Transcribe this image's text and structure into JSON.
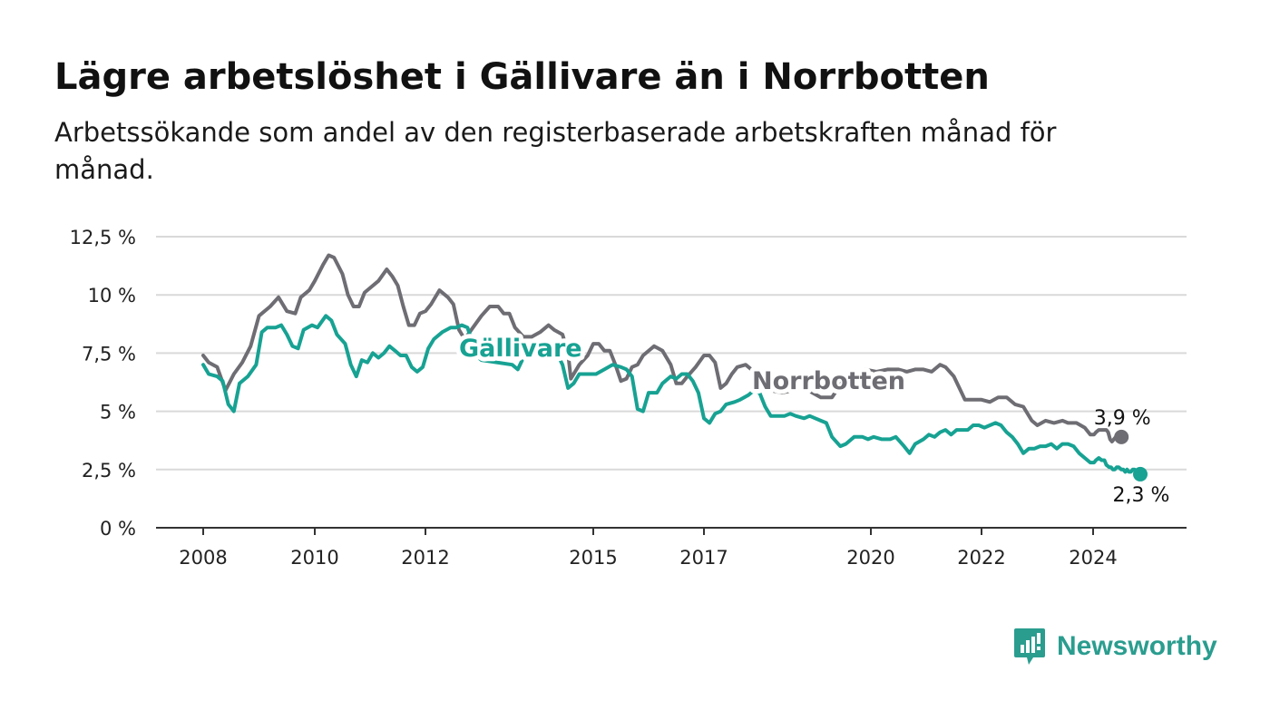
{
  "title": "Lägre arbetslöshet i Gällivare än i Norrbotten",
  "subtitle": "Arbetssökande som andel av den registerbaserade arbetskraften månad för månad.",
  "brand": {
    "name": "Newsworthy",
    "color": "#2a9d8f",
    "icon": "bar-chart-speech-bubble-icon"
  },
  "chart_data": {
    "type": "line",
    "title": "Lägre arbetslöshet i Gällivare än i Norrbotten",
    "subtitle": "Arbetssökande som andel av den registerbaserade arbetskraften månad för månad.",
    "xlabel": "",
    "ylabel": "",
    "ylim": [
      0,
      12.5
    ],
    "xlim": [
      2007.2,
      2025.8
    ],
    "y_ticks": [
      0,
      2.5,
      5,
      7.5,
      10,
      12.5
    ],
    "y_tick_labels": [
      "0 %",
      "2,5 %",
      "5 %",
      "7,5 %",
      "10 %",
      "12,5 %"
    ],
    "x_ticks": [
      2008,
      2010,
      2012,
      2015,
      2017,
      2020,
      2022,
      2024
    ],
    "x_tick_labels": [
      "2008",
      "2010",
      "2012",
      "2015",
      "2017",
      "2020",
      "2022",
      "2024"
    ],
    "grid": true,
    "legend": "inline labels",
    "series": [
      {
        "name": "Norrbotten",
        "color": "#6e6d73",
        "end_label": "3,9 %",
        "points": [
          [
            2008.0,
            7.4
          ],
          [
            2008.1,
            7.1
          ],
          [
            2008.25,
            6.9
          ],
          [
            2008.4,
            5.9
          ],
          [
            2008.55,
            6.6
          ],
          [
            2008.7,
            7.1
          ],
          [
            2008.85,
            7.8
          ],
          [
            2009.0,
            9.1
          ],
          [
            2009.2,
            9.5
          ],
          [
            2009.35,
            9.9
          ],
          [
            2009.5,
            9.3
          ],
          [
            2009.65,
            9.2
          ],
          [
            2009.75,
            9.9
          ],
          [
            2009.9,
            10.2
          ],
          [
            2010.0,
            10.6
          ],
          [
            2010.15,
            11.3
          ],
          [
            2010.25,
            11.7
          ],
          [
            2010.35,
            11.6
          ],
          [
            2010.5,
            10.9
          ],
          [
            2010.6,
            10.0
          ],
          [
            2010.7,
            9.5
          ],
          [
            2010.8,
            9.5
          ],
          [
            2010.9,
            10.1
          ],
          [
            2011.0,
            10.3
          ],
          [
            2011.15,
            10.6
          ],
          [
            2011.3,
            11.1
          ],
          [
            2011.4,
            10.8
          ],
          [
            2011.5,
            10.4
          ],
          [
            2011.6,
            9.5
          ],
          [
            2011.7,
            8.7
          ],
          [
            2011.8,
            8.7
          ],
          [
            2011.9,
            9.2
          ],
          [
            2012.0,
            9.3
          ],
          [
            2012.1,
            9.6
          ],
          [
            2012.25,
            10.2
          ],
          [
            2012.4,
            9.9
          ],
          [
            2012.5,
            9.6
          ],
          [
            2012.6,
            8.5
          ],
          [
            2012.7,
            8.1
          ],
          [
            2012.85,
            8.6
          ],
          [
            2013.0,
            9.1
          ],
          [
            2013.15,
            9.5
          ],
          [
            2013.3,
            9.5
          ],
          [
            2013.4,
            9.2
          ],
          [
            2013.5,
            9.2
          ],
          [
            2013.6,
            8.6
          ],
          [
            2013.75,
            8.2
          ],
          [
            2013.9,
            8.2
          ],
          [
            2014.05,
            8.4
          ],
          [
            2014.2,
            8.7
          ],
          [
            2014.3,
            8.5
          ],
          [
            2014.45,
            8.3
          ],
          [
            2014.55,
            7.5
          ],
          [
            2014.6,
            6.4
          ],
          [
            2014.75,
            7.0
          ],
          [
            2014.9,
            7.4
          ],
          [
            2015.0,
            7.9
          ],
          [
            2015.1,
            7.9
          ],
          [
            2015.2,
            7.6
          ],
          [
            2015.3,
            7.6
          ],
          [
            2015.4,
            7.0
          ],
          [
            2015.5,
            6.3
          ],
          [
            2015.6,
            6.4
          ],
          [
            2015.7,
            6.9
          ],
          [
            2015.8,
            7.0
          ],
          [
            2015.9,
            7.4
          ],
          [
            2016.1,
            7.8
          ],
          [
            2016.25,
            7.6
          ],
          [
            2016.4,
            7.0
          ],
          [
            2016.5,
            6.2
          ],
          [
            2016.6,
            6.2
          ],
          [
            2016.7,
            6.5
          ],
          [
            2016.85,
            6.9
          ],
          [
            2017.0,
            7.4
          ],
          [
            2017.1,
            7.4
          ],
          [
            2017.2,
            7.1
          ],
          [
            2017.3,
            6.0
          ],
          [
            2017.4,
            6.2
          ],
          [
            2017.5,
            6.6
          ],
          [
            2017.6,
            6.9
          ],
          [
            2017.75,
            7.0
          ],
          [
            2017.9,
            6.7
          ],
          [
            2018.1,
            6.2
          ],
          [
            2018.2,
            5.9
          ],
          [
            2018.4,
            5.8
          ],
          [
            2018.6,
            5.9
          ],
          [
            2018.8,
            6.0
          ],
          [
            2018.95,
            5.8
          ],
          [
            2019.1,
            5.6
          ],
          [
            2019.3,
            5.6
          ],
          [
            2019.5,
            6.3
          ],
          [
            2019.7,
            6.6
          ],
          [
            2019.9,
            6.8
          ],
          [
            2020.1,
            6.7
          ],
          [
            2020.3,
            6.8
          ],
          [
            2020.5,
            6.8
          ],
          [
            2020.65,
            6.7
          ],
          [
            2020.8,
            6.8
          ],
          [
            2020.95,
            6.8
          ],
          [
            2021.1,
            6.7
          ],
          [
            2021.25,
            7.0
          ],
          [
            2021.35,
            6.9
          ],
          [
            2021.5,
            6.5
          ],
          [
            2021.6,
            6.0
          ],
          [
            2021.7,
            5.5
          ],
          [
            2021.85,
            5.5
          ],
          [
            2022.0,
            5.5
          ],
          [
            2022.15,
            5.4
          ],
          [
            2022.3,
            5.6
          ],
          [
            2022.45,
            5.6
          ],
          [
            2022.6,
            5.3
          ],
          [
            2022.75,
            5.2
          ],
          [
            2022.9,
            4.6
          ],
          [
            2023.0,
            4.4
          ],
          [
            2023.15,
            4.6
          ],
          [
            2023.3,
            4.5
          ],
          [
            2023.45,
            4.6
          ],
          [
            2023.55,
            4.5
          ],
          [
            2023.7,
            4.5
          ],
          [
            2023.85,
            4.3
          ],
          [
            2023.95,
            4.0
          ],
          [
            2024.05,
            4.0
          ],
          [
            2024.15,
            4.1
          ],
          [
            2024.3,
            4.2
          ],
          [
            2024.45,
            4.2
          ],
          [
            2024.6,
            4.2
          ],
          [
            2024.7,
            4.2
          ],
          [
            2024.8,
            4.1
          ],
          [
            2024.9,
            3.8
          ],
          [
            2025.0,
            3.7
          ],
          [
            2025.1,
            3.8
          ],
          [
            2025.2,
            3.9
          ],
          [
            2025.3,
            3.9
          ],
          [
            2025.4,
            3.9
          ],
          [
            2025.5,
            3.9
          ]
        ]
      },
      {
        "name": "Gällivare",
        "color": "#17a293",
        "end_label": "2,3 %",
        "points": [
          [
            2008.0,
            7.0
          ],
          [
            2008.1,
            6.6
          ],
          [
            2008.25,
            6.5
          ],
          [
            2008.35,
            6.3
          ],
          [
            2008.45,
            5.3
          ],
          [
            2008.55,
            5.0
          ],
          [
            2008.65,
            6.2
          ],
          [
            2008.8,
            6.5
          ],
          [
            2008.95,
            7.0
          ],
          [
            2009.05,
            8.4
          ],
          [
            2009.15,
            8.6
          ],
          [
            2009.3,
            8.6
          ],
          [
            2009.4,
            8.7
          ],
          [
            2009.5,
            8.3
          ],
          [
            2009.6,
            7.8
          ],
          [
            2009.7,
            7.7
          ],
          [
            2009.8,
            8.5
          ],
          [
            2009.95,
            8.7
          ],
          [
            2010.05,
            8.6
          ],
          [
            2010.2,
            9.1
          ],
          [
            2010.3,
            8.9
          ],
          [
            2010.4,
            8.3
          ],
          [
            2010.55,
            7.9
          ],
          [
            2010.65,
            7.0
          ],
          [
            2010.75,
            6.5
          ],
          [
            2010.85,
            7.2
          ],
          [
            2010.95,
            7.1
          ],
          [
            2011.05,
            7.5
          ],
          [
            2011.15,
            7.3
          ],
          [
            2011.25,
            7.5
          ],
          [
            2011.35,
            7.8
          ],
          [
            2011.45,
            7.6
          ],
          [
            2011.55,
            7.4
          ],
          [
            2011.65,
            7.4
          ],
          [
            2011.75,
            6.9
          ],
          [
            2011.85,
            6.7
          ],
          [
            2011.95,
            6.9
          ],
          [
            2012.05,
            7.7
          ],
          [
            2012.15,
            8.1
          ],
          [
            2012.3,
            8.4
          ],
          [
            2012.45,
            8.6
          ],
          [
            2012.55,
            8.6
          ],
          [
            2012.65,
            8.7
          ],
          [
            2012.75,
            8.6
          ],
          [
            2012.85,
            7.9
          ],
          [
            2012.95,
            7.3
          ],
          [
            2013.0,
            7.2
          ],
          [
            2013.55,
            7.0
          ],
          [
            2013.65,
            6.8
          ],
          [
            2013.75,
            7.3
          ],
          [
            2013.9,
            7.4
          ],
          [
            2014.05,
            7.6
          ],
          [
            2014.2,
            7.7
          ],
          [
            2014.35,
            7.5
          ],
          [
            2014.45,
            7.0
          ],
          [
            2014.55,
            6.0
          ],
          [
            2014.65,
            6.2
          ],
          [
            2014.75,
            6.6
          ],
          [
            2014.9,
            6.6
          ],
          [
            2015.05,
            6.6
          ],
          [
            2015.2,
            6.8
          ],
          [
            2015.35,
            7.0
          ],
          [
            2015.5,
            6.9
          ],
          [
            2015.6,
            6.8
          ],
          [
            2015.7,
            6.5
          ],
          [
            2015.8,
            5.1
          ],
          [
            2015.9,
            5.0
          ],
          [
            2016.0,
            5.8
          ],
          [
            2016.15,
            5.8
          ],
          [
            2016.25,
            6.2
          ],
          [
            2016.4,
            6.5
          ],
          [
            2016.5,
            6.4
          ],
          [
            2016.6,
            6.6
          ],
          [
            2016.7,
            6.6
          ],
          [
            2016.8,
            6.3
          ],
          [
            2016.9,
            5.8
          ],
          [
            2017.0,
            4.7
          ],
          [
            2017.1,
            4.5
          ],
          [
            2017.2,
            4.9
          ],
          [
            2017.3,
            5.0
          ],
          [
            2017.4,
            5.3
          ],
          [
            2017.55,
            5.4
          ],
          [
            2017.65,
            5.5
          ],
          [
            2017.8,
            5.7
          ],
          [
            2017.9,
            5.9
          ],
          [
            2018.0,
            5.8
          ],
          [
            2018.1,
            5.2
          ],
          [
            2018.2,
            4.8
          ],
          [
            2018.3,
            4.8
          ],
          [
            2018.45,
            4.8
          ],
          [
            2018.55,
            4.9
          ],
          [
            2018.65,
            4.8
          ],
          [
            2018.8,
            4.7
          ],
          [
            2018.9,
            4.8
          ],
          [
            2019.0,
            4.7
          ],
          [
            2019.1,
            4.6
          ],
          [
            2019.2,
            4.5
          ],
          [
            2019.3,
            3.9
          ],
          [
            2019.45,
            3.5
          ],
          [
            2019.55,
            3.6
          ],
          [
            2019.7,
            3.9
          ],
          [
            2019.85,
            3.9
          ],
          [
            2019.95,
            3.8
          ],
          [
            2020.05,
            3.9
          ],
          [
            2020.2,
            3.8
          ],
          [
            2020.35,
            3.8
          ],
          [
            2020.45,
            3.9
          ],
          [
            2020.6,
            3.5
          ],
          [
            2020.7,
            3.2
          ],
          [
            2020.8,
            3.6
          ],
          [
            2020.95,
            3.8
          ],
          [
            2021.05,
            4.0
          ],
          [
            2021.15,
            3.9
          ],
          [
            2021.25,
            4.1
          ],
          [
            2021.35,
            4.2
          ],
          [
            2021.45,
            4.0
          ],
          [
            2021.55,
            4.2
          ],
          [
            2021.65,
            4.2
          ],
          [
            2021.75,
            4.2
          ],
          [
            2021.85,
            4.4
          ],
          [
            2021.95,
            4.4
          ],
          [
            2022.05,
            4.3
          ],
          [
            2022.15,
            4.4
          ],
          [
            2022.25,
            4.5
          ],
          [
            2022.35,
            4.4
          ],
          [
            2022.45,
            4.1
          ],
          [
            2022.55,
            3.9
          ],
          [
            2022.65,
            3.6
          ],
          [
            2022.75,
            3.2
          ],
          [
            2022.85,
            3.4
          ],
          [
            2022.95,
            3.4
          ],
          [
            2023.05,
            3.5
          ],
          [
            2023.15,
            3.5
          ],
          [
            2023.25,
            3.6
          ],
          [
            2023.35,
            3.4
          ],
          [
            2023.45,
            3.6
          ],
          [
            2023.55,
            3.6
          ],
          [
            2023.65,
            3.5
          ],
          [
            2023.75,
            3.2
          ],
          [
            2023.85,
            3.0
          ],
          [
            2023.95,
            2.8
          ],
          [
            2024.05,
            2.8
          ],
          [
            2024.15,
            2.9
          ],
          [
            2024.3,
            3.0
          ],
          [
            2024.45,
            2.9
          ],
          [
            2024.6,
            2.9
          ],
          [
            2024.7,
            2.7
          ],
          [
            2024.85,
            2.6
          ],
          [
            2024.95,
            2.6
          ],
          [
            2025.05,
            2.5
          ],
          [
            2025.15,
            2.5
          ],
          [
            2025.25,
            2.6
          ],
          [
            2025.35,
            2.6
          ],
          [
            2025.5,
            2.5
          ],
          [
            2025.6,
            2.5
          ],
          [
            2025.7,
            2.4
          ],
          [
            2025.8,
            2.5
          ],
          [
            2025.9,
            2.4
          ],
          [
            2026.0,
            2.4
          ],
          [
            2026.1,
            2.5
          ],
          [
            2026.2,
            2.5
          ],
          [
            2026.3,
            2.4
          ],
          [
            2026.4,
            2.4
          ],
          [
            2026.5,
            2.3
          ]
        ]
      }
    ]
  }
}
